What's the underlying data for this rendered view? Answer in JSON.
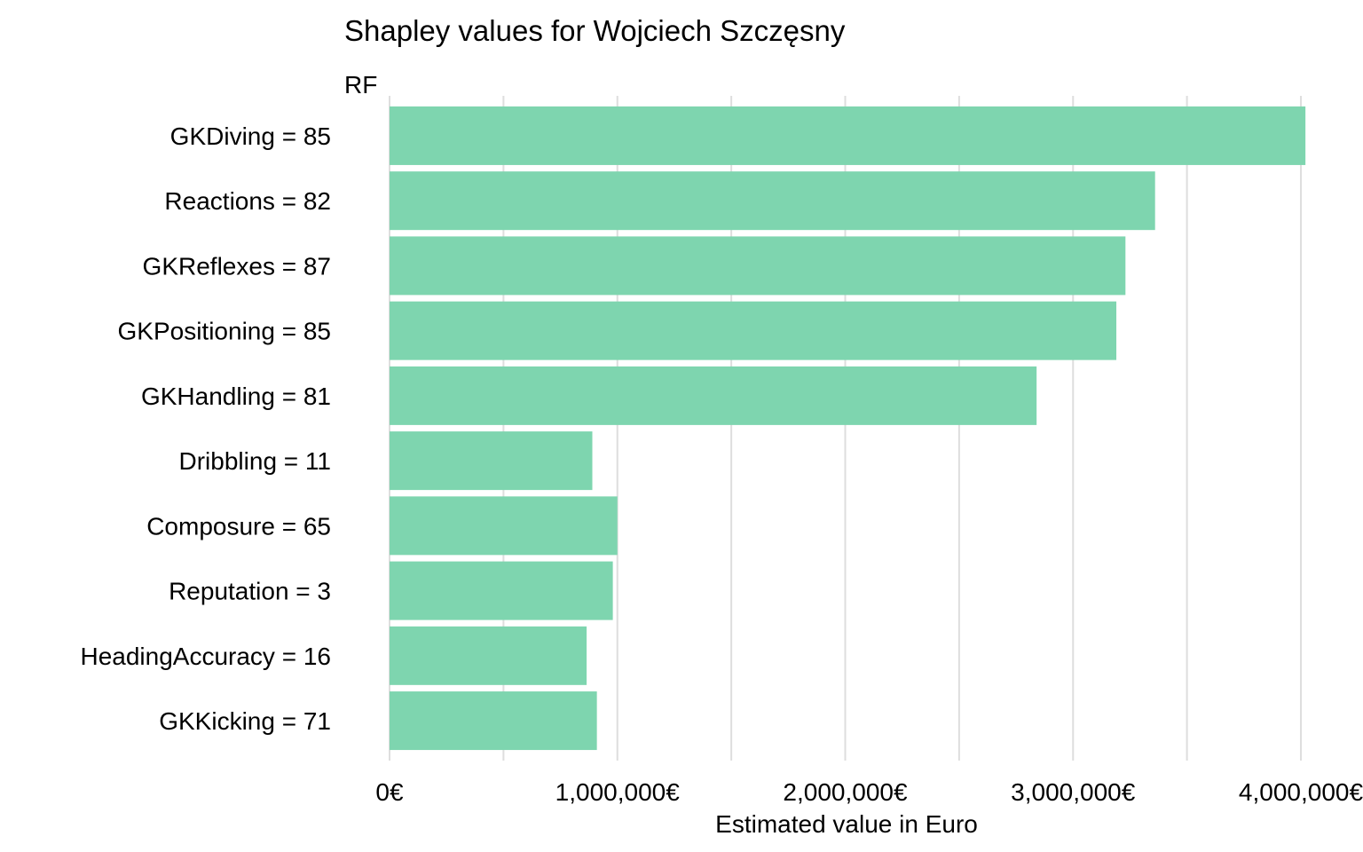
{
  "chart_data": {
    "type": "bar",
    "orientation": "horizontal",
    "title": "Shapley values for Wojciech Szczęsny",
    "subtitle": "RF",
    "xlabel": "Estimated value in Euro",
    "ylabel": "",
    "xlim": [
      0,
      4000000
    ],
    "x_ticks": [
      0,
      1000000,
      2000000,
      3000000,
      4000000
    ],
    "x_tick_labels": [
      "0€",
      "1,000,000€",
      "2,000,000€",
      "3,000,000€",
      "4,000,000€"
    ],
    "grid": "vertical",
    "legend": "none",
    "bar_color": "#7ED5AF",
    "categories": [
      "GKDiving = 85",
      "Reactions = 82",
      "GKReflexes = 87",
      "GKPositioning = 85",
      "GKHandling = 81",
      "Dribbling = 11",
      "Composure = 65",
      "Reputation = 3",
      "HeadingAccuracy = 16",
      "GKKicking = 71"
    ],
    "values": [
      4020000,
      3360000,
      3230000,
      3190000,
      2840000,
      890000,
      1000000,
      980000,
      865000,
      910000
    ]
  }
}
